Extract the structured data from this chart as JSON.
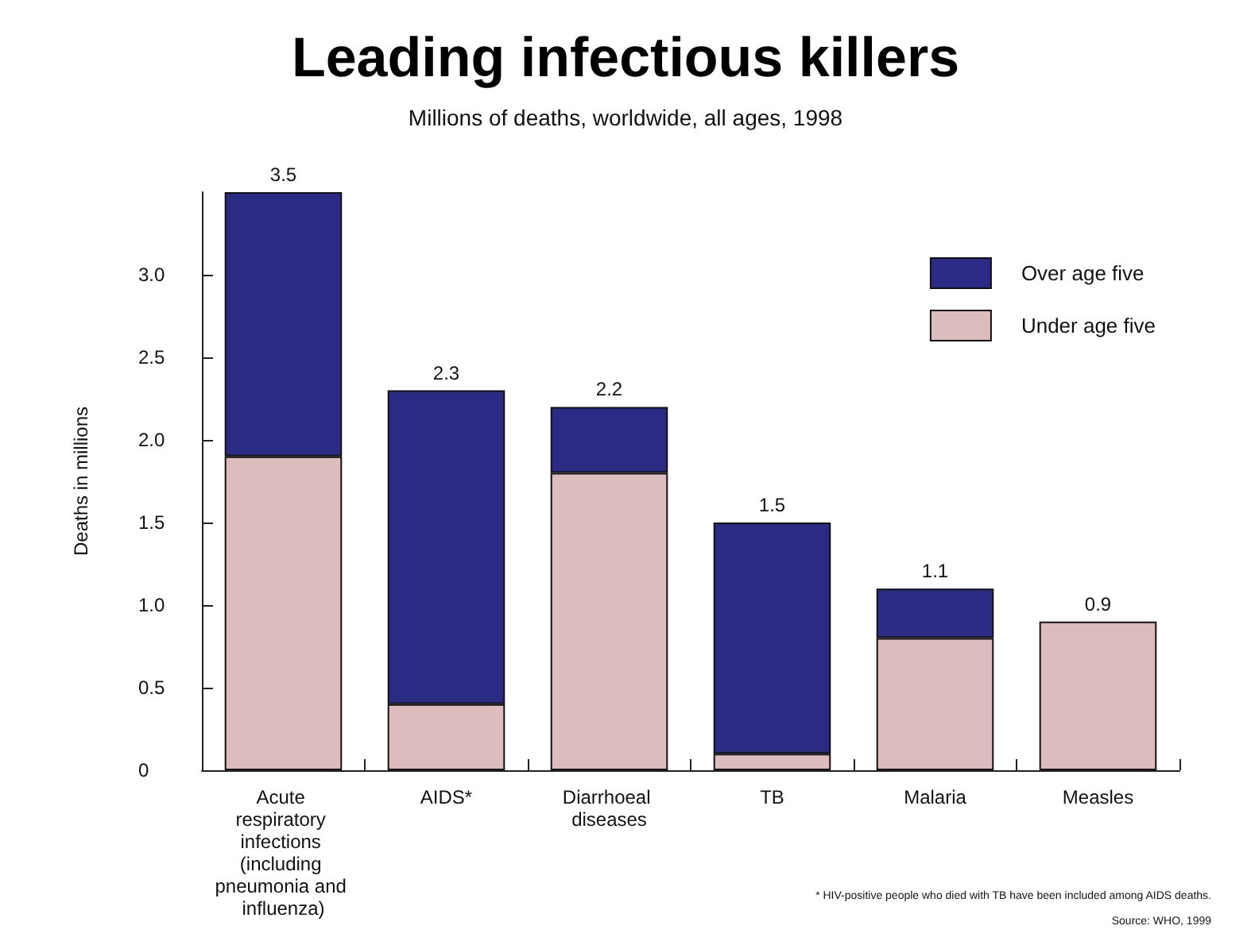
{
  "chart_data": {
    "type": "bar",
    "title": "Leading infectious killers",
    "subtitle": "Millions of deaths, worldwide, all ages, 1998",
    "ylabel": "Deaths in millions",
    "categories": [
      "Acute respiratory infections (including pneumonia and influenza)",
      "AIDS*",
      "Diarrhoeal diseases",
      "TB",
      "Malaria",
      "Measles"
    ],
    "series": [
      {
        "name": "Under age five",
        "color": "#dcbcbc",
        "values": [
          1.9,
          0.4,
          1.8,
          0.1,
          0.8,
          0.9
        ]
      },
      {
        "name": "Over age five",
        "color": "#2b2b86",
        "values": [
          1.6,
          1.9,
          0.4,
          1.4,
          0.3,
          null
        ]
      }
    ],
    "stacked": true,
    "totals": [
      "3.5",
      "2.3",
      "2.2",
      "1.5",
      "1.1",
      "0.9"
    ],
    "ylim": [
      0,
      3.5
    ],
    "yticks": [
      0,
      0.5,
      {
        "value": 1,
        "label": "1.0"
      },
      1.5,
      {
        "value": 2,
        "label": "2.0"
      },
      2.5,
      {
        "value": 3,
        "label": "3.0"
      }
    ],
    "grid": false,
    "legend": "top right",
    "annotations": [
      "* HIV-positive people who died with TB have been included among AIDS deaths.",
      "Source: WHO, 1999"
    ]
  }
}
